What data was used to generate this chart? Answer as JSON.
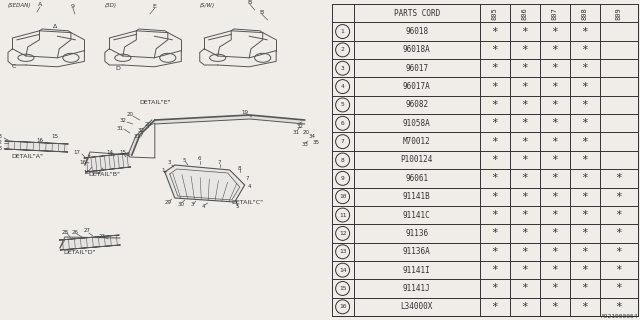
{
  "bg_color": "#f0ede8",
  "line_color": "#555555",
  "text_color": "#333333",
  "table_bg": "#f0ede8",
  "col_headers": [
    "PARTS CORD",
    "805",
    "806",
    "807",
    "808",
    "809"
  ],
  "rows": [
    {
      "num": 1,
      "part": "96018",
      "cols": [
        true,
        true,
        true,
        true,
        false
      ]
    },
    {
      "num": 2,
      "part": "96018A",
      "cols": [
        true,
        true,
        true,
        true,
        false
      ]
    },
    {
      "num": 3,
      "part": "96017",
      "cols": [
        true,
        true,
        true,
        true,
        false
      ]
    },
    {
      "num": 4,
      "part": "96017A",
      "cols": [
        true,
        true,
        true,
        true,
        false
      ]
    },
    {
      "num": 5,
      "part": "96082",
      "cols": [
        true,
        true,
        true,
        true,
        false
      ]
    },
    {
      "num": 6,
      "part": "91058A",
      "cols": [
        true,
        true,
        true,
        true,
        false
      ]
    },
    {
      "num": 7,
      "part": "M70012",
      "cols": [
        true,
        true,
        true,
        true,
        false
      ]
    },
    {
      "num": 8,
      "part": "P100124",
      "cols": [
        true,
        true,
        true,
        true,
        false
      ]
    },
    {
      "num": 9,
      "part": "96061",
      "cols": [
        true,
        true,
        true,
        true,
        true
      ]
    },
    {
      "num": 10,
      "part": "91141B",
      "cols": [
        true,
        true,
        true,
        true,
        true
      ]
    },
    {
      "num": 11,
      "part": "91141C",
      "cols": [
        true,
        true,
        true,
        true,
        true
      ]
    },
    {
      "num": 12,
      "part": "91136",
      "cols": [
        true,
        true,
        true,
        true,
        true
      ]
    },
    {
      "num": 13,
      "part": "91136A",
      "cols": [
        true,
        true,
        true,
        true,
        true
      ]
    },
    {
      "num": 14,
      "part": "91141I",
      "cols": [
        true,
        true,
        true,
        true,
        true
      ]
    },
    {
      "num": 15,
      "part": "91141J",
      "cols": [
        true,
        true,
        true,
        true,
        true
      ]
    },
    {
      "num": 16,
      "part": "L34000X",
      "cols": [
        true,
        true,
        true,
        true,
        true
      ]
    }
  ],
  "footer": "A921000064"
}
